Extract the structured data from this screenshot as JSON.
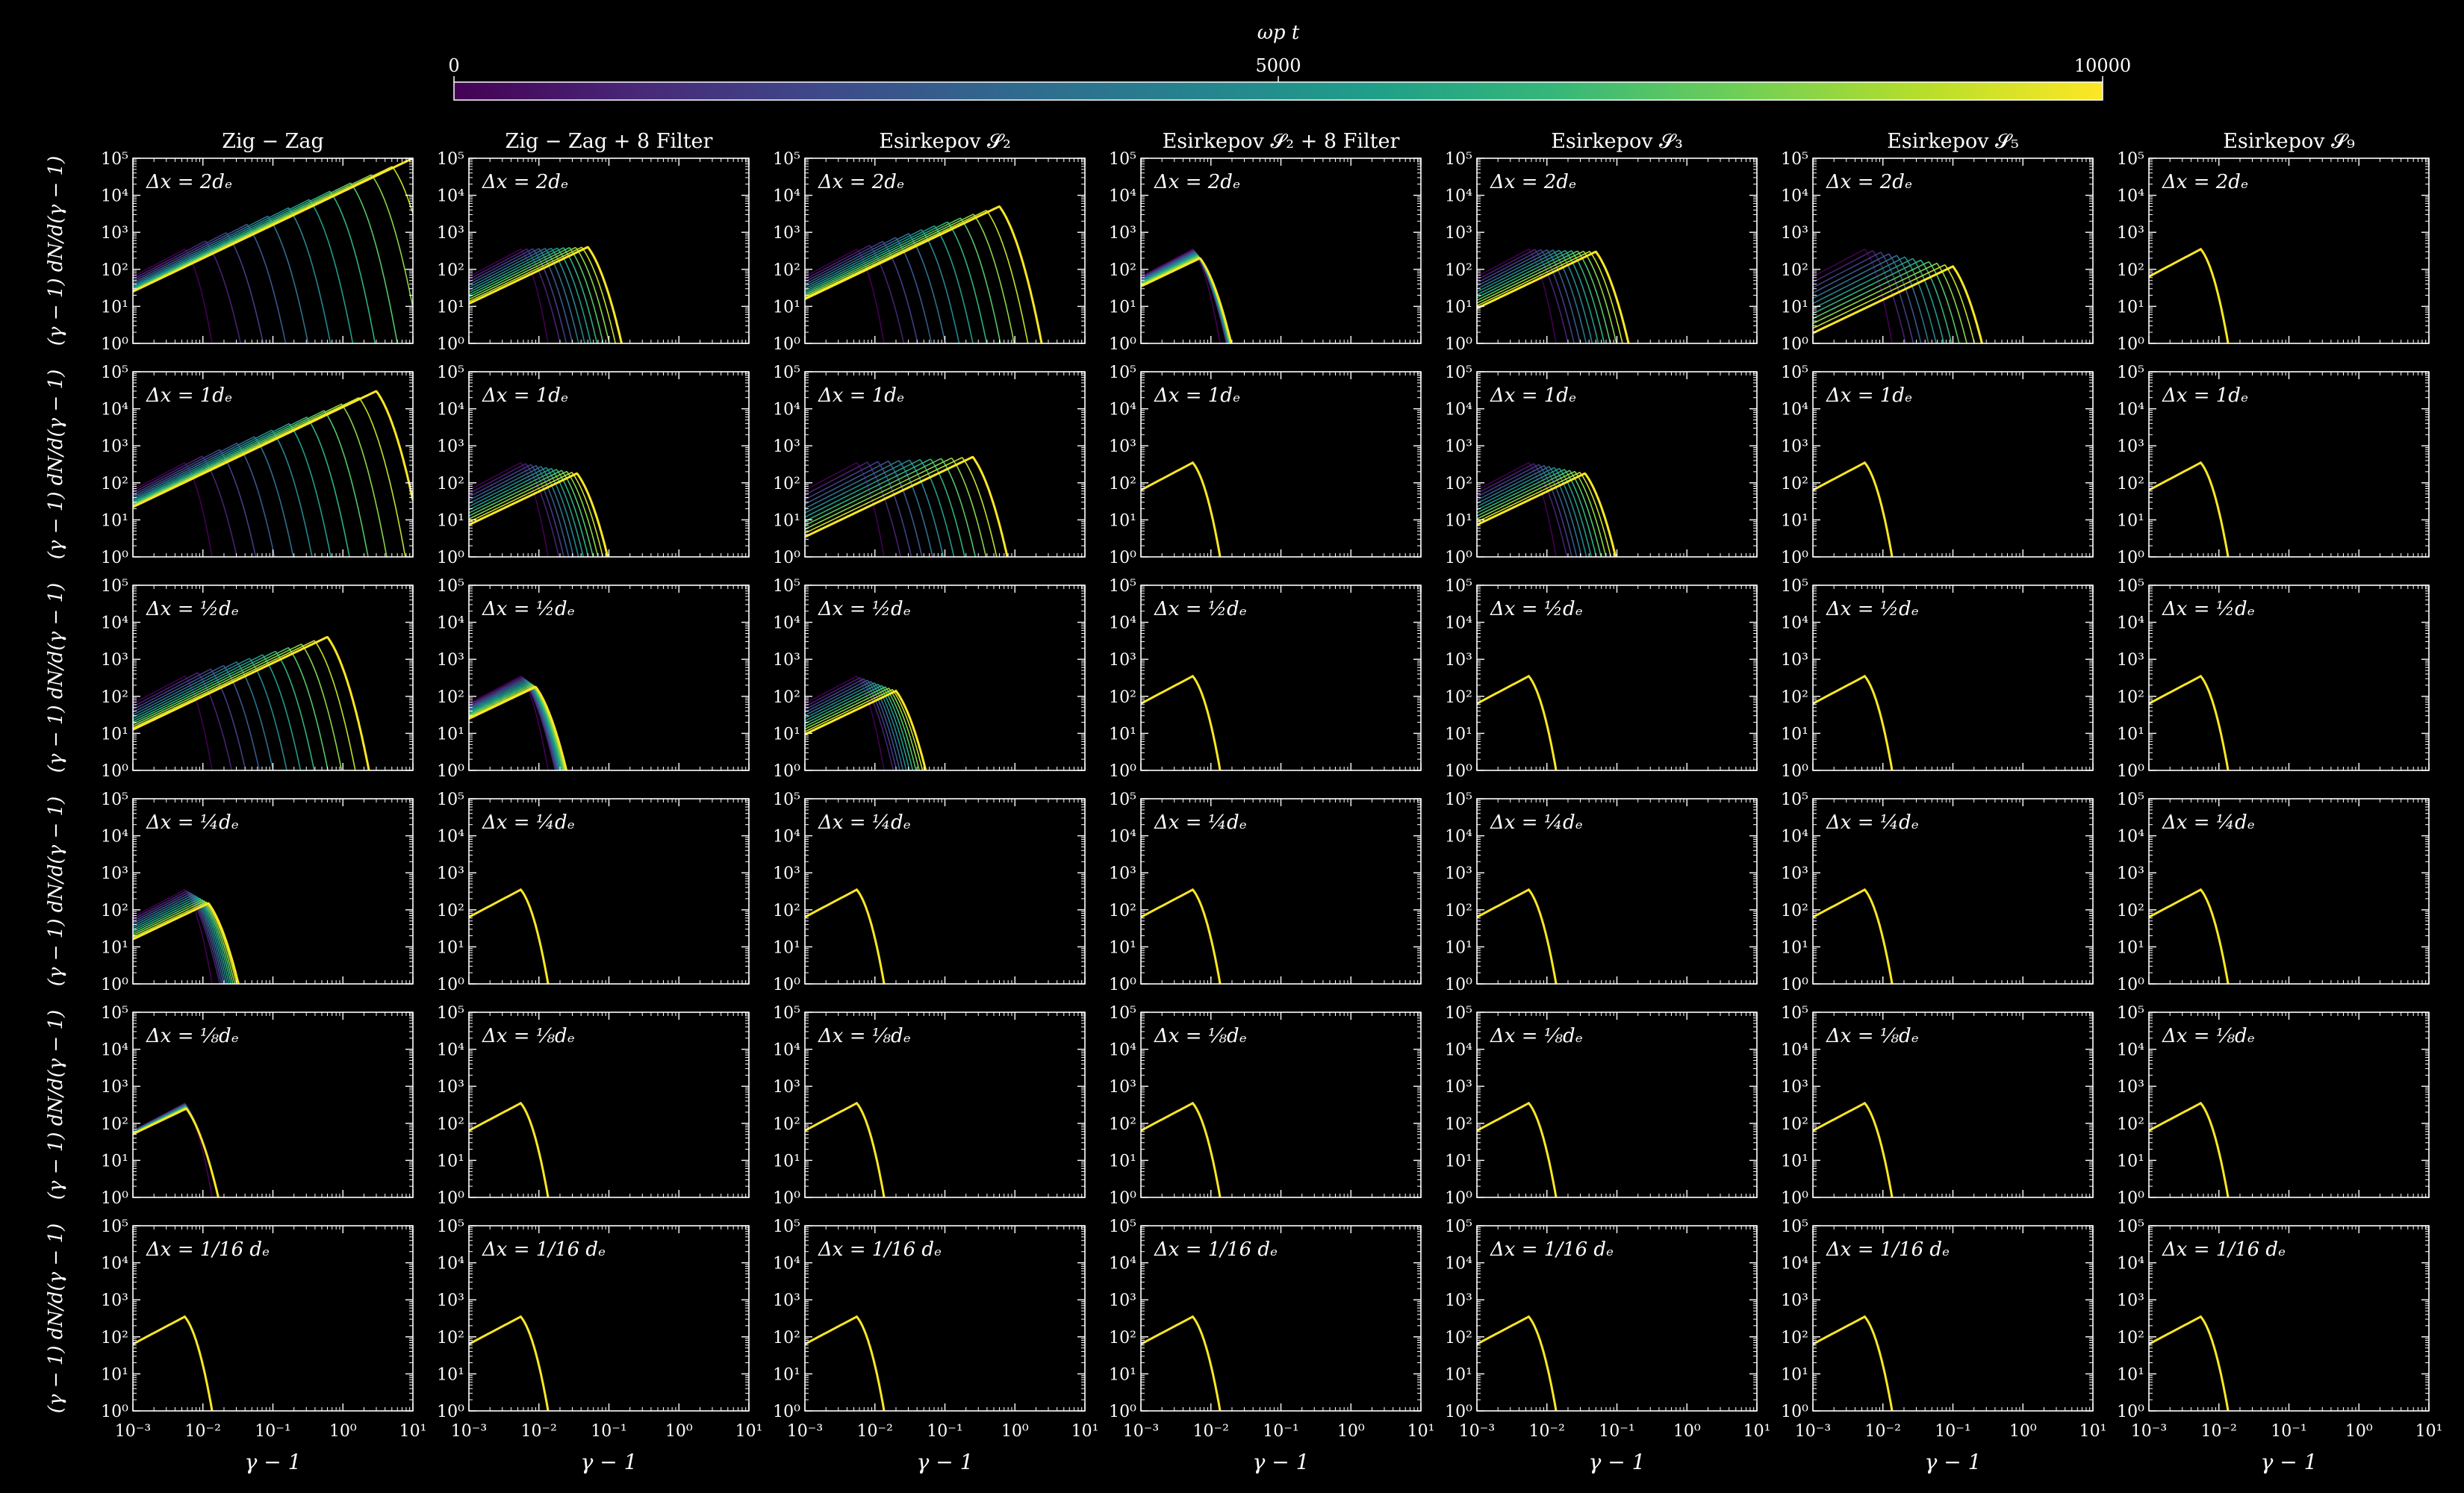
{
  "colorbar": {
    "label": "ωp t",
    "ticks": [
      "0",
      "5000",
      "10000"
    ],
    "range": [
      0,
      10000
    ],
    "colormap": "viridis",
    "colormap_stops": [
      "#440154",
      "#482878",
      "#3e4989",
      "#31688e",
      "#26828e",
      "#1f9e89",
      "#35b779",
      "#6ece58",
      "#b5de2b",
      "#fde725"
    ]
  },
  "axes": {
    "xlabel": "γ − 1",
    "ylabel": "(γ − 1) dN/d(γ − 1)",
    "xticks": [
      "10⁻³",
      "10⁻²",
      "10⁻¹",
      "10⁰",
      "10¹"
    ],
    "yticks": [
      "10⁰",
      "10¹",
      "10²",
      "10³",
      "10⁴",
      "10⁵"
    ],
    "xlog": true,
    "ylog": true
  },
  "chart_data": {
    "type": "line",
    "description_free_grid": true,
    "x_range": [
      0.001,
      10
    ],
    "y_range": [
      1,
      100000
    ],
    "x_scale": "log",
    "y_scale": "log",
    "columns": [
      "Zig − Zag",
      "Zig − Zag + 8 Filter",
      "Esirkepov 𝓢₂",
      "Esirkepov 𝓢₂ + 8 Filter",
      "Esirkepov 𝓢₃",
      "Esirkepov 𝓢₅",
      "Esirkepov 𝓢₉"
    ],
    "rows": [
      "Δx = 2dₑ",
      "Δx = 1dₑ",
      "Δx = ½dₑ",
      "Δx = ¼dₑ",
      "Δx = ⅛dₑ",
      "Δx = 1/16 dₑ"
    ],
    "initial_spectrum": {
      "peak_x": 0.0055,
      "peak_y": 350
    },
    "final_spectra": [
      [
        {
          "peak_x": 10,
          "peak_y": 100000
        },
        {
          "peak_x": 0.05,
          "peak_y": 400
        },
        {
          "peak_x": 0.6,
          "peak_y": 5000
        },
        {
          "peak_x": 0.007,
          "peak_y": 200
        },
        {
          "peak_x": 0.05,
          "peak_y": 300
        },
        {
          "peak_x": 0.1,
          "peak_y": 120
        },
        {
          "peak_x": 0.0055,
          "peak_y": 350
        }
      ],
      [
        {
          "peak_x": 3,
          "peak_y": 30000
        },
        {
          "peak_x": 0.035,
          "peak_y": 180
        },
        {
          "peak_x": 0.25,
          "peak_y": 500
        },
        {
          "peak_x": 0.0055,
          "peak_y": 350
        },
        {
          "peak_x": 0.035,
          "peak_y": 180
        },
        {
          "peak_x": 0.0055,
          "peak_y": 350
        },
        {
          "peak_x": 0.0055,
          "peak_y": 350
        }
      ],
      [
        {
          "peak_x": 0.6,
          "peak_y": 4000
        },
        {
          "peak_x": 0.009,
          "peak_y": 180
        },
        {
          "peak_x": 0.02,
          "peak_y": 140
        },
        {
          "peak_x": 0.0055,
          "peak_y": 350
        },
        {
          "peak_x": 0.0055,
          "peak_y": 350
        },
        {
          "peak_x": 0.0055,
          "peak_y": 350
        },
        {
          "peak_x": 0.0055,
          "peak_y": 350
        }
      ],
      [
        {
          "peak_x": 0.012,
          "peak_y": 150
        },
        {
          "peak_x": 0.0055,
          "peak_y": 350
        },
        {
          "peak_x": 0.0058,
          "peak_y": 350
        },
        {
          "peak_x": 0.0055,
          "peak_y": 350
        },
        {
          "peak_x": 0.0055,
          "peak_y": 350
        },
        {
          "peak_x": 0.0055,
          "peak_y": 350
        },
        {
          "peak_x": 0.0055,
          "peak_y": 350
        }
      ],
      [
        {
          "peak_x": 0.0058,
          "peak_y": 250
        },
        {
          "peak_x": 0.0055,
          "peak_y": 350
        },
        {
          "peak_x": 0.0055,
          "peak_y": 350
        },
        {
          "peak_x": 0.0055,
          "peak_y": 350
        },
        {
          "peak_x": 0.0055,
          "peak_y": 350
        },
        {
          "peak_x": 0.0055,
          "peak_y": 350
        },
        {
          "peak_x": 0.0055,
          "peak_y": 350
        }
      ],
      [
        {
          "peak_x": 0.0055,
          "peak_y": 350
        },
        {
          "peak_x": 0.0055,
          "peak_y": 350
        },
        {
          "peak_x": 0.0055,
          "peak_y": 350
        },
        {
          "peak_x": 0.0055,
          "peak_y": 350
        },
        {
          "peak_x": 0.0055,
          "peak_y": 350
        },
        {
          "peak_x": 0.0055,
          "peak_y": 350
        },
        {
          "peak_x": 0.0055,
          "peak_y": 350
        }
      ]
    ],
    "time_snapshots": 12
  }
}
